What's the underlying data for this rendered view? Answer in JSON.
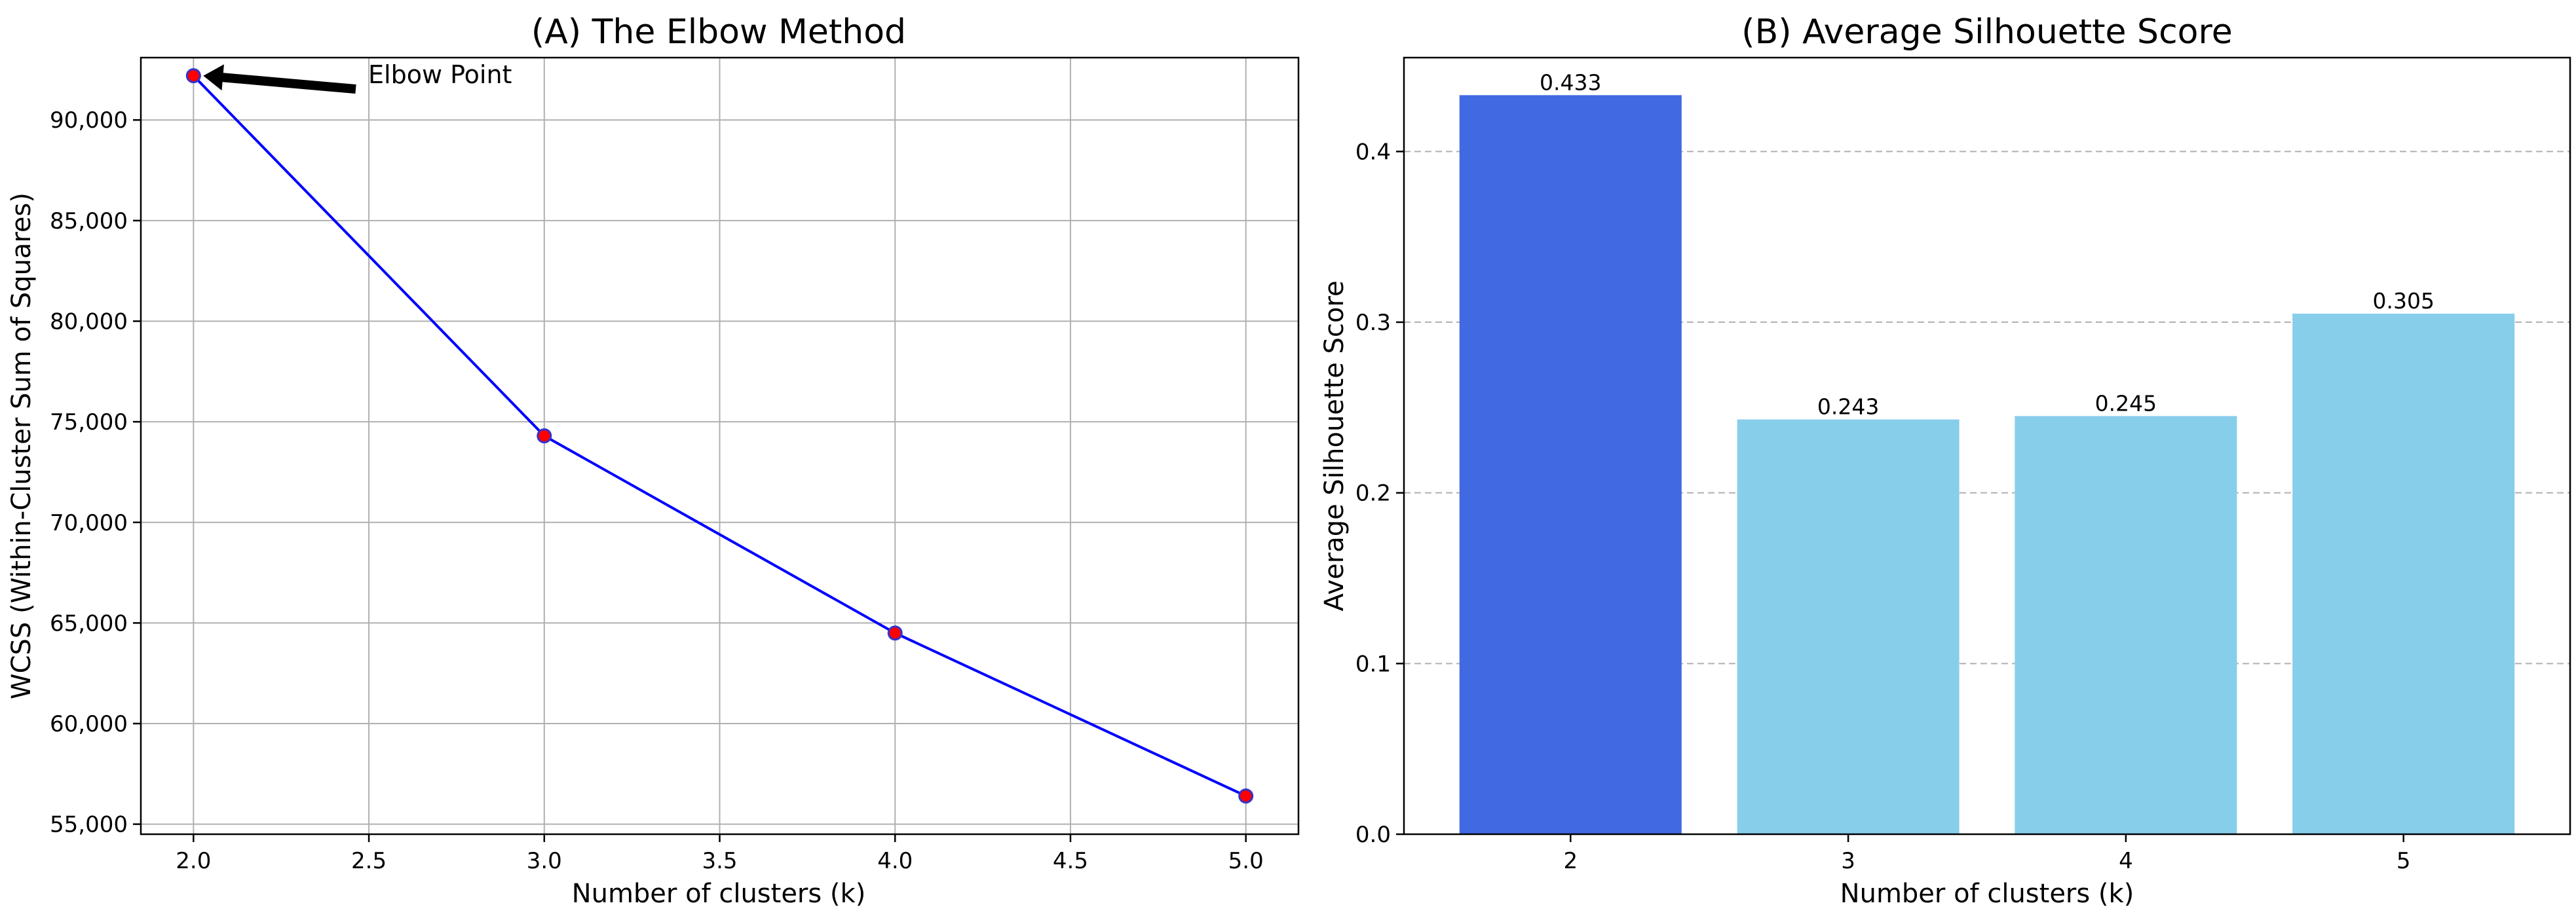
{
  "chart_data": [
    {
      "type": "line",
      "title": "(A) The Elbow Method",
      "xlabel": "Number of clusters (k)",
      "ylabel": "WCSS (Within-Cluster Sum of Squares)",
      "x": [
        2,
        3,
        4,
        5
      ],
      "y": [
        92200,
        74300,
        64500,
        56400
      ],
      "xlim": [
        1.85,
        5.15
      ],
      "ylim": [
        54500,
        93100
      ],
      "xticks": [
        2.0,
        2.5,
        3.0,
        3.5,
        4.0,
        4.5,
        5.0
      ],
      "xtick_labels": [
        "2.0",
        "2.5",
        "3.0",
        "3.5",
        "4.0",
        "4.5",
        "5.0"
      ],
      "yticks": [
        55000,
        60000,
        65000,
        70000,
        75000,
        80000,
        85000,
        90000
      ],
      "ytick_labels": [
        "55,000",
        "60,000",
        "65,000",
        "70,000",
        "75,000",
        "80,000",
        "85,000",
        "90,000"
      ],
      "grid": true,
      "line_color": "#0000ff",
      "marker_fill": "#ff0000",
      "marker_edge": "#3333cc",
      "annotation": {
        "text": "Elbow Point",
        "x": 2,
        "y": 92200,
        "arrow_color": "#000000"
      }
    },
    {
      "type": "bar",
      "title": "(B) Average Silhouette Score",
      "xlabel": "Number of clusters (k)",
      "ylabel": "Average Silhouette Score",
      "categories": [
        "2",
        "3",
        "4",
        "5"
      ],
      "values": [
        0.433,
        0.243,
        0.245,
        0.305
      ],
      "value_labels": [
        "0.433",
        "0.243",
        "0.245",
        "0.305"
      ],
      "colors": [
        "#4169e1",
        "#87ceeb",
        "#87ceeb",
        "#87ceeb"
      ],
      "ylim": [
        0,
        0.455
      ],
      "yticks": [
        0.0,
        0.1,
        0.2,
        0.3,
        0.4
      ],
      "ytick_labels": [
        "0.0",
        "0.1",
        "0.2",
        "0.3",
        "0.4"
      ],
      "grid": "y-dashed"
    }
  ]
}
